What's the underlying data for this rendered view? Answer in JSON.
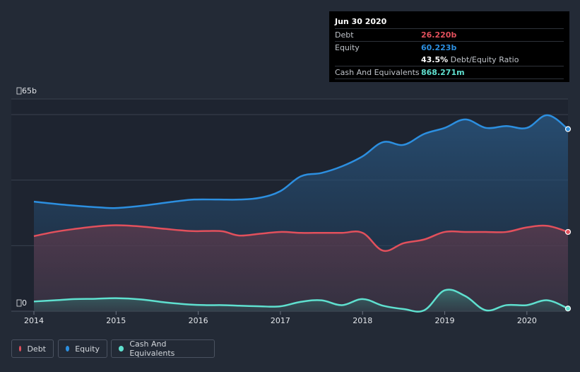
{
  "tooltip": {
    "date": "Jun 30 2020",
    "debt_label": "Debt",
    "debt_value": "26.220b",
    "equity_label": "Equity",
    "equity_value": "60.223b",
    "ratio_value": "43.5%",
    "ratio_label": "Debt/Equity Ratio",
    "cash_label": "Cash And Equivalents",
    "cash_value": "868.271m"
  },
  "legend": {
    "debt": "Debt",
    "equity": "Equity",
    "cash": "Cash And Equivalents"
  },
  "chart_data": {
    "type": "area",
    "title": "",
    "xlabel": "",
    "ylabel": "",
    "x_ticks": [
      "2014",
      "2015",
      "2016",
      "2017",
      "2018",
      "2019",
      "2020"
    ],
    "y_ticks": [
      "65b",
      "0"
    ],
    "xlim": [
      2014.0,
      2020.5
    ],
    "ylim": [
      0,
      65
    ],
    "colors": {
      "debt": "#e2505c",
      "equity": "#2c8fe0",
      "cash": "#5fe0cf"
    },
    "series": [
      {
        "name": "Equity",
        "x": [
          2014.0,
          2014.4,
          2014.8,
          2015.0,
          2015.3,
          2015.7,
          2015.95,
          2016.25,
          2016.5,
          2016.75,
          2017.0,
          2017.25,
          2017.5,
          2017.75,
          2018.0,
          2018.25,
          2018.5,
          2018.75,
          2019.0,
          2019.25,
          2019.5,
          2019.75,
          2020.0,
          2020.25,
          2020.5
        ],
        "values": [
          36.2,
          35.1,
          34.3,
          34.1,
          34.8,
          36.2,
          36.9,
          36.9,
          36.9,
          37.5,
          39.7,
          44.6,
          45.7,
          47.9,
          51.2,
          55.9,
          55.0,
          58.6,
          60.6,
          63.4,
          60.6,
          61.2,
          60.6,
          64.8,
          60.2
        ]
      },
      {
        "name": "Debt",
        "x": [
          2014.0,
          2014.25,
          2014.5,
          2014.75,
          2015.0,
          2015.3,
          2015.6,
          2015.9,
          2016.1,
          2016.3,
          2016.5,
          2016.75,
          2017.0,
          2017.25,
          2017.5,
          2017.75,
          2018.0,
          2018.25,
          2018.5,
          2018.75,
          2019.0,
          2019.25,
          2019.5,
          2019.75,
          2020.0,
          2020.25,
          2020.5
        ],
        "values": [
          24.8,
          26.2,
          27.2,
          28.0,
          28.4,
          28.0,
          27.2,
          26.5,
          26.5,
          26.4,
          25.0,
          25.6,
          26.2,
          25.9,
          25.9,
          25.9,
          25.9,
          20.0,
          22.5,
          23.7,
          26.2,
          26.2,
          26.2,
          26.2,
          27.7,
          28.2,
          26.2
        ]
      },
      {
        "name": "Cash And Equivalents",
        "x": [
          2014.0,
          2014.25,
          2014.5,
          2014.75,
          2015.0,
          2015.3,
          2015.6,
          2015.9,
          2016.1,
          2016.3,
          2016.5,
          2016.75,
          2017.0,
          2017.25,
          2017.5,
          2017.75,
          2018.0,
          2018.25,
          2018.5,
          2018.75,
          2019.0,
          2019.25,
          2019.5,
          2019.75,
          2020.0,
          2020.25,
          2020.5
        ],
        "values": [
          3.2,
          3.6,
          4.0,
          4.1,
          4.3,
          3.9,
          2.9,
          2.2,
          2.0,
          2.0,
          1.8,
          1.6,
          1.6,
          3.1,
          3.6,
          2.0,
          4.0,
          1.8,
          0.7,
          0.3,
          6.9,
          5.0,
          0.3,
          2.0,
          2.0,
          3.6,
          0.87
        ]
      }
    ],
    "legend_position": "bottom-left"
  }
}
